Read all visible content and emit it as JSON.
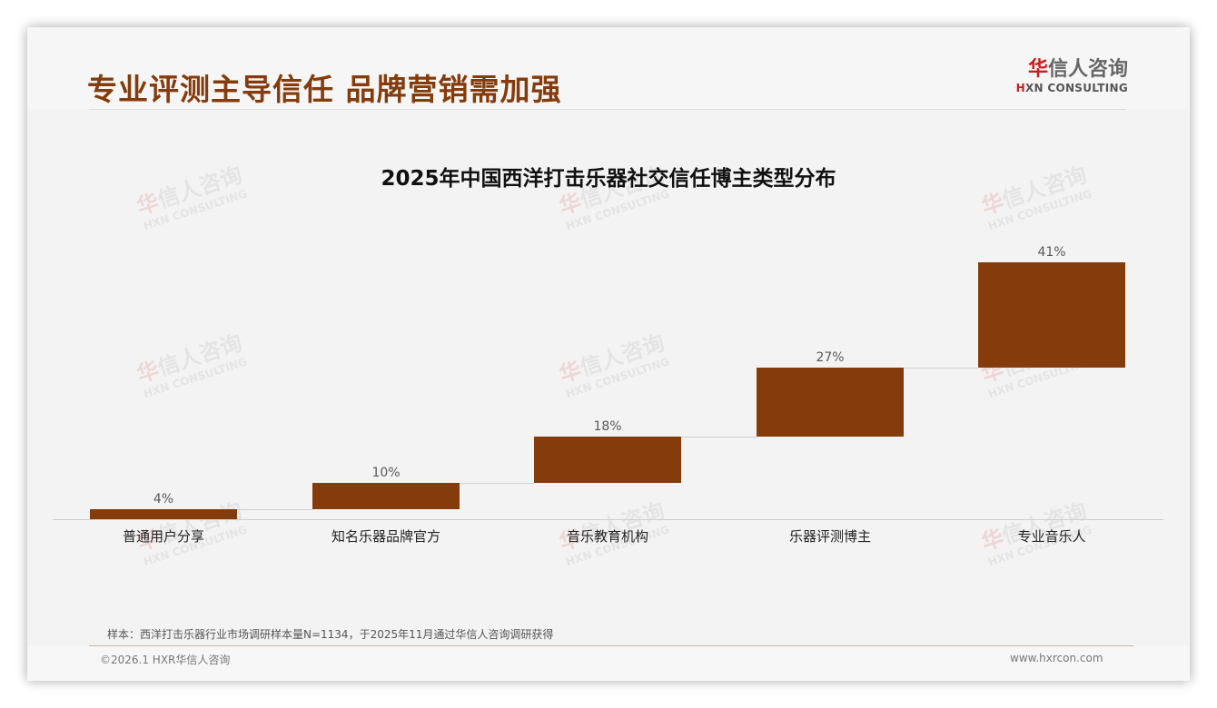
{
  "slide": {
    "title": "专业评测主导信任 品牌营销需加强",
    "logo": {
      "cn_first": "华",
      "cn_rest": "信人咨询",
      "en_first": "H",
      "en_rest": "XN CONSULTING"
    },
    "note": "样本：西洋打击乐器行业市场调研样本量N=1134，于2025年11月通过华信人咨询调研获得",
    "copyright": "©2026.1 HXR华信人咨询",
    "website": "www.hxrcon.com",
    "watermark": {
      "cn_first": "华",
      "cn_rest": "信人咨询",
      "en": "HXN CONSULTING"
    }
  },
  "colors": {
    "bar": "#843c0c",
    "title": "#843c0c",
    "logo_accent": "#d01c1c"
  },
  "chart_data": {
    "type": "bar",
    "subtype": "waterfall",
    "title": "2025年中国西洋打击乐器社交信任博主类型分布",
    "categories": [
      "普通用户分享",
      "知名乐器品牌官方",
      "音乐教育机构",
      "乐器评测博主",
      "专业音乐人"
    ],
    "values": [
      4,
      10,
      18,
      27,
      41
    ],
    "labels": [
      "4%",
      "10%",
      "18%",
      "27%",
      "41%"
    ],
    "cumulative": [
      4,
      14,
      32,
      59,
      100
    ],
    "unit": "%",
    "xlabel": "",
    "ylabel": "",
    "ylim": [
      0,
      100
    ],
    "grid": false,
    "legend": null
  }
}
